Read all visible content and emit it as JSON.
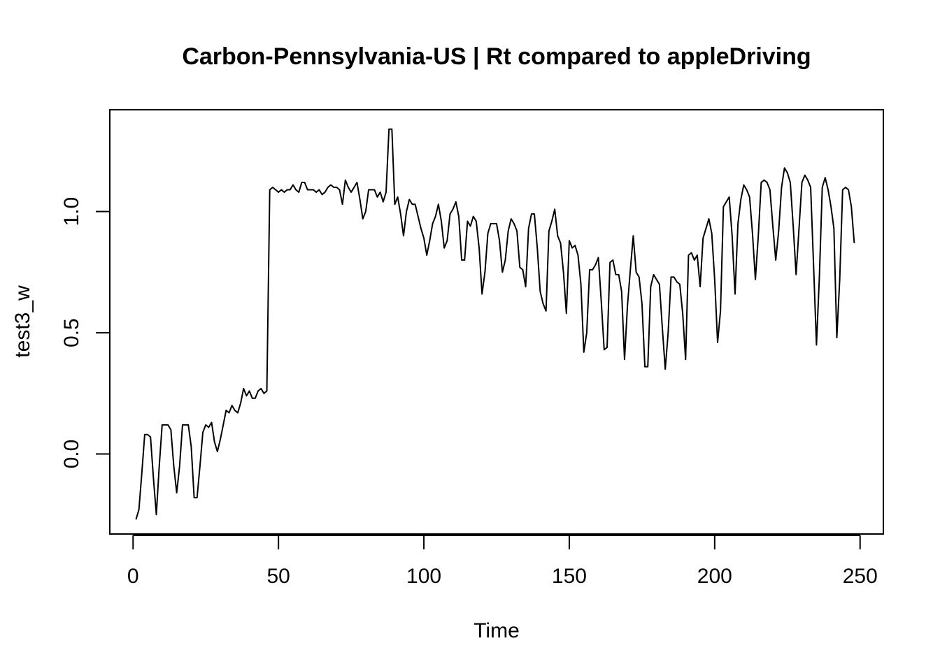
{
  "chart_data": {
    "type": "line",
    "title": "Carbon-Pennsylvania-US | Rt compared to appleDriving",
    "xlabel": "Time",
    "ylabel": "test3_w",
    "xlim": [
      -8,
      258
    ],
    "ylim": [
      -0.33,
      1.42
    ],
    "x_ticks": [
      0,
      50,
      100,
      150,
      200,
      250
    ],
    "y_ticks": [
      0.0,
      0.5,
      1.0
    ],
    "x_tick_labels": [
      "0",
      "50",
      "100",
      "150",
      "200",
      "250"
    ],
    "y_tick_labels": [
      "0.0",
      "0.5",
      "1.0"
    ],
    "grid": false,
    "legend": "none",
    "line_color": "#000000",
    "series": [
      {
        "x": [
          1,
          2,
          3,
          4,
          5,
          6,
          7,
          8,
          9,
          10,
          11,
          12,
          13,
          14,
          15,
          16,
          17,
          18,
          19,
          20,
          21,
          22,
          23,
          24,
          25,
          26,
          27,
          28,
          29,
          30,
          31,
          32,
          33,
          34,
          35,
          36,
          37,
          38,
          39,
          40,
          41,
          42,
          43,
          44,
          45,
          46,
          47,
          48,
          49,
          50,
          51,
          52,
          53,
          54,
          55,
          56,
          57,
          58,
          59,
          60,
          61,
          62,
          63,
          64,
          65,
          66,
          67,
          68,
          69,
          70,
          71,
          72,
          73,
          74,
          75,
          76,
          77,
          78,
          79,
          80,
          81,
          82,
          83,
          84,
          85,
          86,
          87,
          88,
          89,
          90,
          91,
          92,
          93,
          94,
          95,
          96,
          97,
          98,
          99,
          100,
          101,
          102,
          103,
          104,
          105,
          106,
          107,
          108,
          109,
          110,
          111,
          112,
          113,
          114,
          115,
          116,
          117,
          118,
          119,
          120,
          121,
          122,
          123,
          124,
          125,
          126,
          127,
          128,
          129,
          130,
          131,
          132,
          133,
          134,
          135,
          136,
          137,
          138,
          139,
          140,
          141,
          142,
          143,
          144,
          145,
          146,
          147,
          148,
          149,
          150,
          151,
          152,
          153,
          154,
          155,
          156,
          157,
          158,
          159,
          160,
          161,
          162,
          163,
          164,
          165,
          166,
          167,
          168,
          169,
          170,
          171,
          172,
          173,
          174,
          175,
          176,
          177,
          178,
          179,
          180,
          181,
          182,
          183,
          184,
          185,
          186,
          187,
          188,
          189,
          190,
          191,
          192,
          193,
          194,
          195,
          196,
          197,
          198,
          199,
          200,
          201,
          202,
          203,
          204,
          205,
          206,
          207,
          208,
          209,
          210,
          211,
          212,
          213,
          214,
          215,
          216,
          217,
          218,
          219,
          220,
          221,
          222,
          223,
          224,
          225,
          226,
          227,
          228,
          229,
          230,
          231,
          232,
          233,
          234,
          235,
          236,
          237,
          238,
          239,
          240,
          241,
          242,
          243,
          244,
          245,
          246,
          247,
          248
        ],
        "values": [
          -0.27,
          -0.23,
          -0.08,
          0.08,
          0.08,
          0.07,
          -0.1,
          -0.25,
          -0.05,
          0.12,
          0.12,
          0.12,
          0.1,
          -0.05,
          -0.16,
          -0.05,
          0.12,
          0.12,
          0.12,
          0.03,
          -0.18,
          -0.18,
          -0.05,
          0.09,
          0.12,
          0.11,
          0.13,
          0.05,
          0.01,
          0.06,
          0.12,
          0.18,
          0.17,
          0.2,
          0.18,
          0.17,
          0.21,
          0.27,
          0.24,
          0.26,
          0.23,
          0.23,
          0.26,
          0.27,
          0.25,
          0.26,
          1.09,
          1.1,
          1.09,
          1.08,
          1.09,
          1.08,
          1.09,
          1.09,
          1.11,
          1.09,
          1.08,
          1.12,
          1.12,
          1.09,
          1.09,
          1.09,
          1.08,
          1.09,
          1.07,
          1.08,
          1.1,
          1.11,
          1.1,
          1.1,
          1.09,
          1.03,
          1.13,
          1.1,
          1.08,
          1.1,
          1.12,
          1.05,
          0.97,
          1.0,
          1.09,
          1.09,
          1.09,
          1.06,
          1.08,
          1.04,
          1.08,
          1.34,
          1.34,
          1.03,
          1.06,
          0.99,
          0.9,
          1.0,
          1.05,
          1.03,
          1.03,
          0.98,
          0.93,
          0.89,
          0.82,
          0.88,
          0.95,
          0.98,
          1.03,
          0.96,
          0.85,
          0.88,
          0.99,
          1.01,
          1.04,
          0.98,
          0.8,
          0.8,
          0.96,
          0.94,
          0.98,
          0.96,
          0.85,
          0.66,
          0.75,
          0.91,
          0.95,
          0.95,
          0.95,
          0.88,
          0.75,
          0.8,
          0.92,
          0.97,
          0.95,
          0.92,
          0.77,
          0.76,
          0.69,
          0.93,
          0.99,
          0.99,
          0.85,
          0.67,
          0.62,
          0.59,
          0.92,
          0.96,
          1.01,
          0.9,
          0.87,
          0.75,
          0.58,
          0.88,
          0.85,
          0.86,
          0.82,
          0.7,
          0.42,
          0.5,
          0.76,
          0.76,
          0.78,
          0.81,
          0.63,
          0.43,
          0.44,
          0.79,
          0.8,
          0.74,
          0.74,
          0.67,
          0.39,
          0.61,
          0.76,
          0.9,
          0.75,
          0.73,
          0.62,
          0.36,
          0.36,
          0.69,
          0.74,
          0.72,
          0.7,
          0.52,
          0.35,
          0.5,
          0.73,
          0.73,
          0.71,
          0.7,
          0.58,
          0.39,
          0.82,
          0.83,
          0.8,
          0.82,
          0.69,
          0.89,
          0.93,
          0.97,
          0.91,
          0.72,
          0.46,
          0.59,
          1.02,
          1.04,
          1.06,
          0.9,
          0.66,
          0.95,
          1.05,
          1.11,
          1.09,
          1.06,
          0.91,
          0.72,
          0.9,
          1.12,
          1.13,
          1.12,
          1.09,
          0.94,
          0.8,
          0.92,
          1.1,
          1.18,
          1.16,
          1.12,
          0.94,
          0.74,
          0.93,
          1.12,
          1.15,
          1.13,
          1.1,
          0.78,
          0.45,
          0.73,
          1.1,
          1.14,
          1.09,
          1.02,
          0.93,
          0.48,
          0.72,
          1.09,
          1.1,
          1.09,
          1.02,
          0.87
        ]
      }
    ]
  }
}
